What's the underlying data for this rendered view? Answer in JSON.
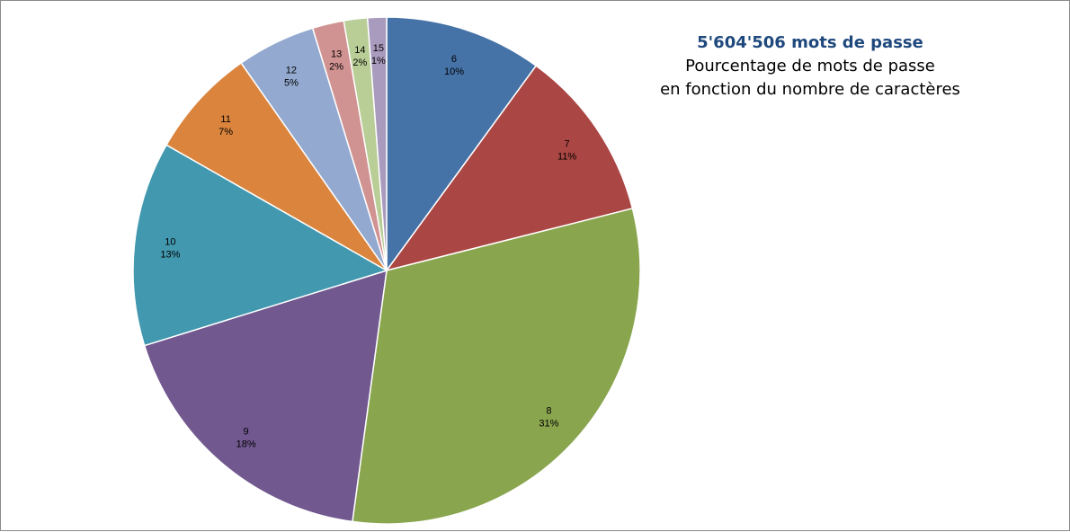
{
  "chart_data": {
    "type": "pie",
    "title": "5'604'506  mots de passe",
    "subtitle_lines": [
      "Pourcentage de mots de passe",
      "en fonction du nombre de caractères"
    ],
    "slices": [
      {
        "label": "6",
        "percent": 10,
        "percent_text": "10%",
        "color": "#4572A7"
      },
      {
        "label": "7",
        "percent": 11,
        "percent_text": "11%",
        "color": "#AA4643"
      },
      {
        "label": "8",
        "percent": 31,
        "percent_text": "31%",
        "color": "#89A54E"
      },
      {
        "label": "9",
        "percent": 18,
        "percent_text": "18%",
        "color": "#71588F"
      },
      {
        "label": "10",
        "percent": 13,
        "percent_text": "13%",
        "color": "#4198AF"
      },
      {
        "label": "11",
        "percent": 7,
        "percent_text": "7%",
        "color": "#DB843D"
      },
      {
        "label": "12",
        "percent": 5,
        "percent_text": "5%",
        "color": "#93A9CF"
      },
      {
        "label": "13",
        "percent": 2,
        "percent_text": "2%",
        "color": "#D19392"
      },
      {
        "label": "14",
        "percent": 1.5,
        "percent_text": "2%",
        "color": "#B9CD96"
      },
      {
        "label": "15",
        "percent": 1.2,
        "percent_text": "1%",
        "color": "#A99BBD"
      }
    ],
    "legend": "none"
  }
}
